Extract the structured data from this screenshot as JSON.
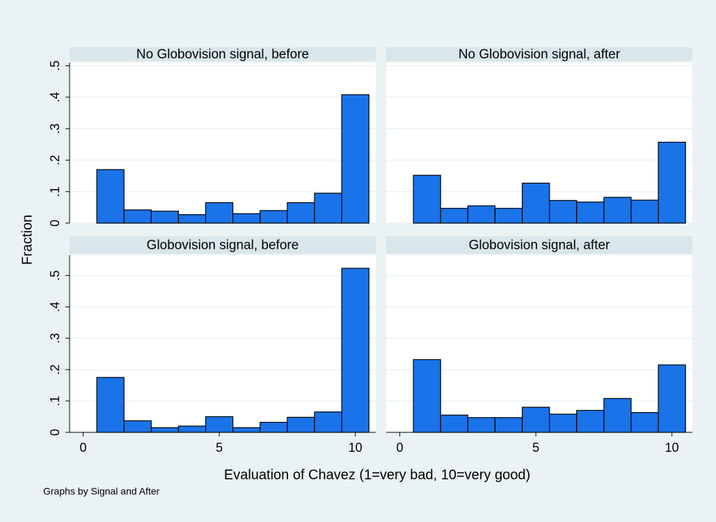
{
  "chart_data": [
    {
      "type": "histogram",
      "title": "No Globovision signal, before",
      "color": "#1a73e8",
      "bins": [
        0.5,
        1.5,
        2.5,
        3.5,
        4.5,
        5.5,
        6.5,
        7.5,
        8.5,
        9.5,
        10.5
      ],
      "values": [
        0.17,
        0.042,
        0.038,
        0.027,
        0.065,
        0.03,
        0.04,
        0.065,
        0.095,
        0.408
      ],
      "xlim": [
        -0.5,
        10.75
      ],
      "ylim": [
        0,
        0.51
      ],
      "yticks": [
        0,
        {
          "value": 0.1,
          "label": ".1"
        },
        {
          "value": 0.2,
          "label": ".2"
        },
        {
          "value": 0.3,
          "label": ".3"
        },
        {
          "value": 0.4,
          "label": ".4"
        },
        {
          "value": 0.5,
          "label": ".5"
        }
      ],
      "grid": true
    },
    {
      "type": "histogram",
      "title": "No Globovision signal, after",
      "color": "#1a73e8",
      "bins": [
        0.5,
        1.5,
        2.5,
        3.5,
        4.5,
        5.5,
        6.5,
        7.5,
        8.5,
        9.5,
        10.5
      ],
      "values": [
        0.152,
        0.047,
        0.055,
        0.047,
        0.127,
        0.072,
        0.067,
        0.082,
        0.073,
        0.257
      ],
      "xlim": [
        -0.5,
        10.75
      ],
      "ylim": [
        0,
        0.51
      ],
      "yticks": [
        0,
        0.1,
        0.2,
        0.3,
        0.4,
        0.5
      ],
      "grid": true
    },
    {
      "type": "histogram",
      "title": "Globovision signal, before",
      "color": "#1a73e8",
      "bins": [
        0.5,
        1.5,
        2.5,
        3.5,
        4.5,
        5.5,
        6.5,
        7.5,
        8.5,
        9.5,
        10.5
      ],
      "values": [
        0.175,
        0.037,
        0.015,
        0.02,
        0.05,
        0.015,
        0.032,
        0.048,
        0.065,
        0.523
      ],
      "xlim": [
        -0.5,
        10.75
      ],
      "ylim": [
        0,
        0.565
      ],
      "xticks": [
        0,
        5,
        10
      ],
      "yticks": [
        0,
        {
          "value": 0.1,
          "label": ".1"
        },
        {
          "value": 0.2,
          "label": ".2"
        },
        {
          "value": 0.3,
          "label": ".3"
        },
        {
          "value": 0.4,
          "label": ".4"
        },
        {
          "value": 0.5,
          "label": ".5"
        }
      ],
      "grid": true
    },
    {
      "type": "histogram",
      "title": "Globovision signal, after",
      "color": "#1a73e8",
      "bins": [
        0.5,
        1.5,
        2.5,
        3.5,
        4.5,
        5.5,
        6.5,
        7.5,
        8.5,
        9.5,
        10.5
      ],
      "values": [
        0.232,
        0.055,
        0.047,
        0.047,
        0.08,
        0.058,
        0.07,
        0.108,
        0.063,
        0.215
      ],
      "xlim": [
        -0.5,
        10.75
      ],
      "ylim": [
        0,
        0.565
      ],
      "xticks": [
        0,
        5,
        10
      ],
      "yticks": [
        0,
        0.1,
        0.2,
        0.3,
        0.4,
        0.5
      ],
      "grid": true
    }
  ],
  "ylabel": "Fraction",
  "xlabel": "Evaluation of Chavez (1=very bad, 10=very good)",
  "note": "Graphs by Signal and After"
}
